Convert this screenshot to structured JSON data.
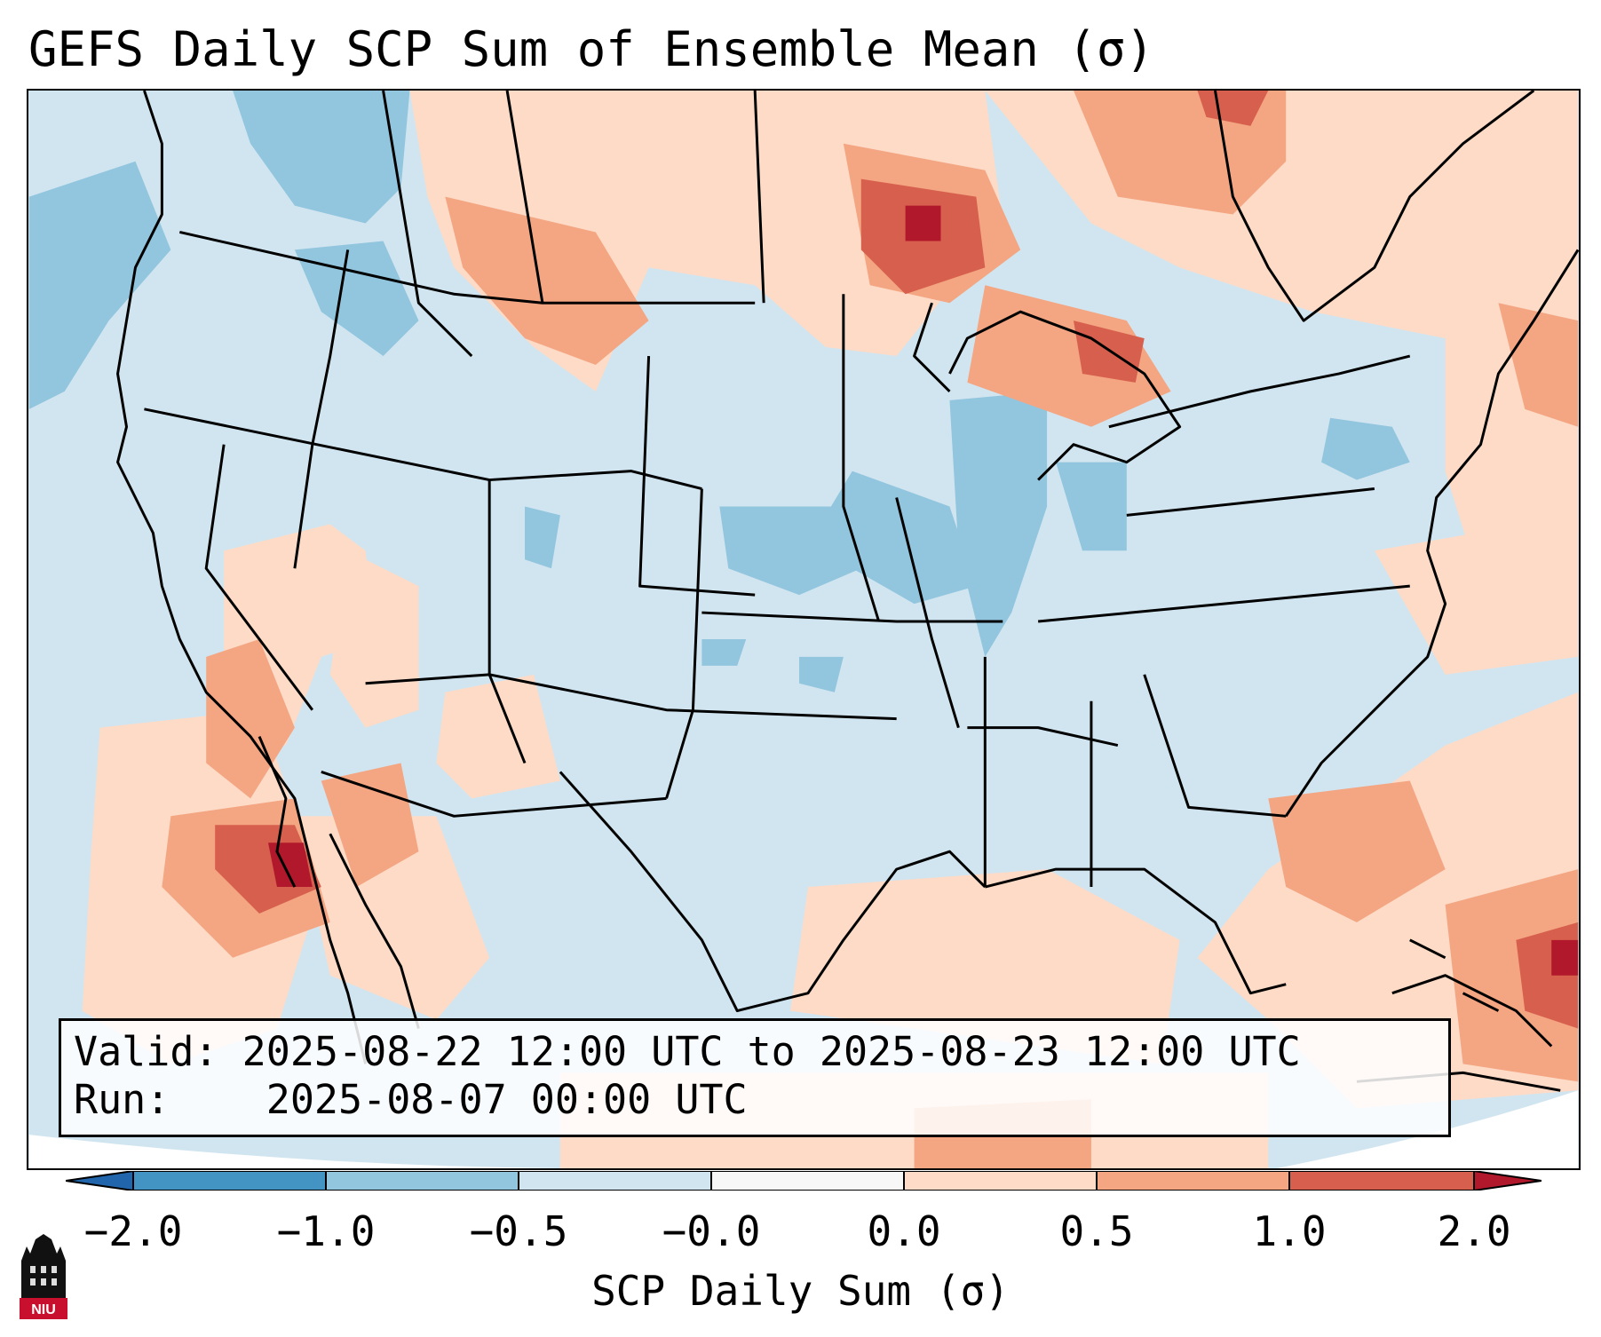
{
  "title": "GEFS Daily SCP Sum of Ensemble Mean (σ)",
  "info": {
    "valid_label": "Valid:",
    "valid_value": "2025-08-22 12:00 UTC to 2025-08-23 12:00 UTC",
    "run_label": "Run:",
    "run_value": "2025-08-07 00:00 UTC"
  },
  "colorbar": {
    "label": "SCP Daily Sum (σ)",
    "ticks": [
      "−2.0",
      "−1.0",
      "−0.5",
      "−0.0",
      "0.0",
      "0.5",
      "1.0",
      "2.0"
    ],
    "bins": [
      {
        "range": "< -2.0",
        "color": "#2166ac"
      },
      {
        "range": "-2.0 to -1.0",
        "color": "#4393c3"
      },
      {
        "range": "-1.0 to -0.5",
        "color": "#92c5de"
      },
      {
        "range": "-0.5 to -0.0",
        "color": "#d1e5f0"
      },
      {
        "range": "-0.0 to 0.0",
        "color": "#f7f7f7"
      },
      {
        "range": "0.0 to 0.5",
        "color": "#fddbc7"
      },
      {
        "range": "0.5 to 1.0",
        "color": "#f4a582"
      },
      {
        "range": "1.0 to 2.0",
        "color": "#d6604d"
      },
      {
        "range": "> 2.0",
        "color": "#b2182b"
      }
    ]
  },
  "logo": {
    "text": "NIU"
  }
}
